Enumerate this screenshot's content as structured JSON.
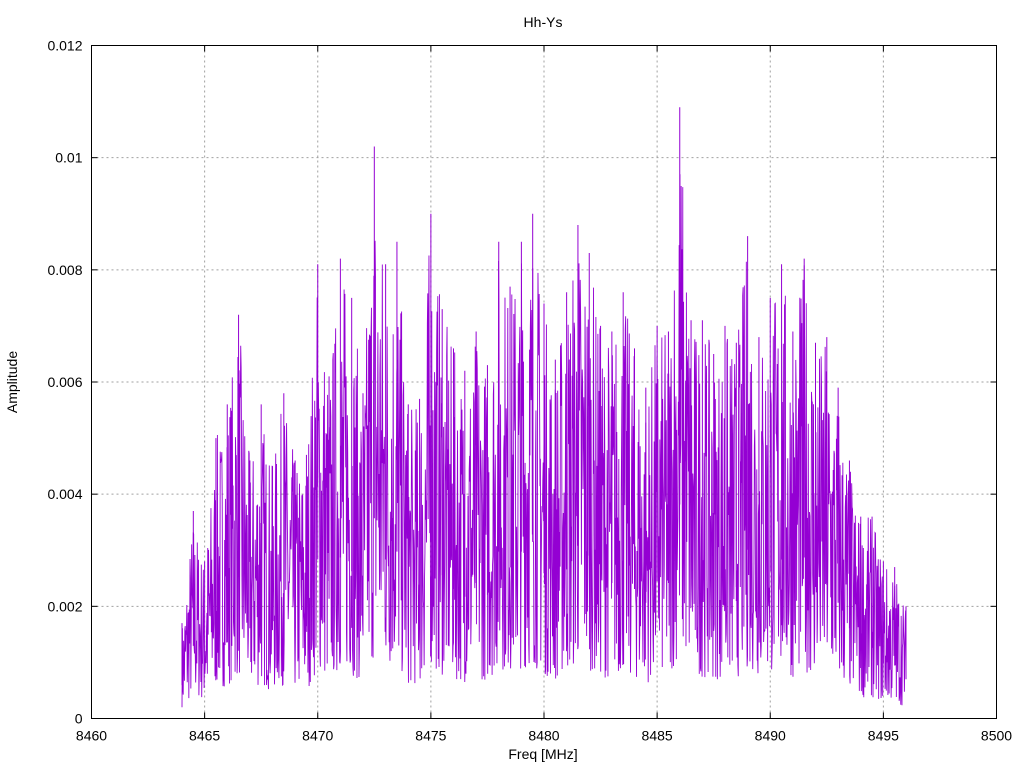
{
  "chart_data": {
    "type": "line",
    "title": "Hh-Ys",
    "xlabel": "Freq [MHz]",
    "ylabel": "Amplitude",
    "xlim": [
      8460,
      8500
    ],
    "ylim": [
      0,
      0.012
    ],
    "x_ticks": [
      "8460",
      "8465",
      "8470",
      "8475",
      "8480",
      "8485",
      "8490",
      "8495",
      "8500"
    ],
    "y_ticks": [
      "0",
      "0.002",
      "0.004",
      "0.006",
      "0.008",
      "0.01",
      "0.012"
    ],
    "grid": true,
    "series": [
      {
        "color": "#9400d3",
        "x": [
          8464.0,
          8464.5,
          8465.0,
          8465.5,
          8466.0,
          8466.5,
          8467.0,
          8467.5,
          8468.0,
          8468.5,
          8469.0,
          8469.5,
          8470.0,
          8470.5,
          8471.0,
          8471.5,
          8472.0,
          8472.5,
          8473.0,
          8473.5,
          8474.0,
          8474.5,
          8475.0,
          8475.5,
          8476.0,
          8476.5,
          8477.0,
          8477.5,
          8478.0,
          8478.5,
          8479.0,
          8479.5,
          8480.0,
          8480.5,
          8481.0,
          8481.5,
          8482.0,
          8482.5,
          8483.0,
          8483.5,
          8484.0,
          8484.5,
          8485.0,
          8485.5,
          8486.0,
          8486.5,
          8487.0,
          8487.5,
          8488.0,
          8488.5,
          8489.0,
          8489.5,
          8490.0,
          8490.5,
          8491.0,
          8491.5,
          8492.0,
          8492.5,
          8493.0,
          8493.5,
          8494.0,
          8494.5,
          8495.0,
          8495.5,
          8496.0
        ],
        "y": [
          0.0017,
          0.0037,
          0.0028,
          0.005,
          0.0056,
          0.0072,
          0.0046,
          0.0056,
          0.0045,
          0.0058,
          0.0046,
          0.0047,
          0.0081,
          0.0061,
          0.0082,
          0.0075,
          0.0058,
          0.0102,
          0.0081,
          0.0085,
          0.0056,
          0.0057,
          0.009,
          0.0073,
          0.0066,
          0.0062,
          0.0069,
          0.0063,
          0.0085,
          0.0077,
          0.0085,
          0.009,
          0.0074,
          0.0064,
          0.0076,
          0.0088,
          0.0083,
          0.007,
          0.0069,
          0.0076,
          0.0066,
          0.0059,
          0.007,
          0.0069,
          0.0109,
          0.0071,
          0.0071,
          0.0065,
          0.007,
          0.0067,
          0.0086,
          0.0068,
          0.0075,
          0.0081,
          0.0069,
          0.0082,
          0.0067,
          0.0068,
          0.0059,
          0.0046,
          0.0036,
          0.0036,
          0.0028,
          0.0027,
          0.002
        ]
      }
    ]
  }
}
